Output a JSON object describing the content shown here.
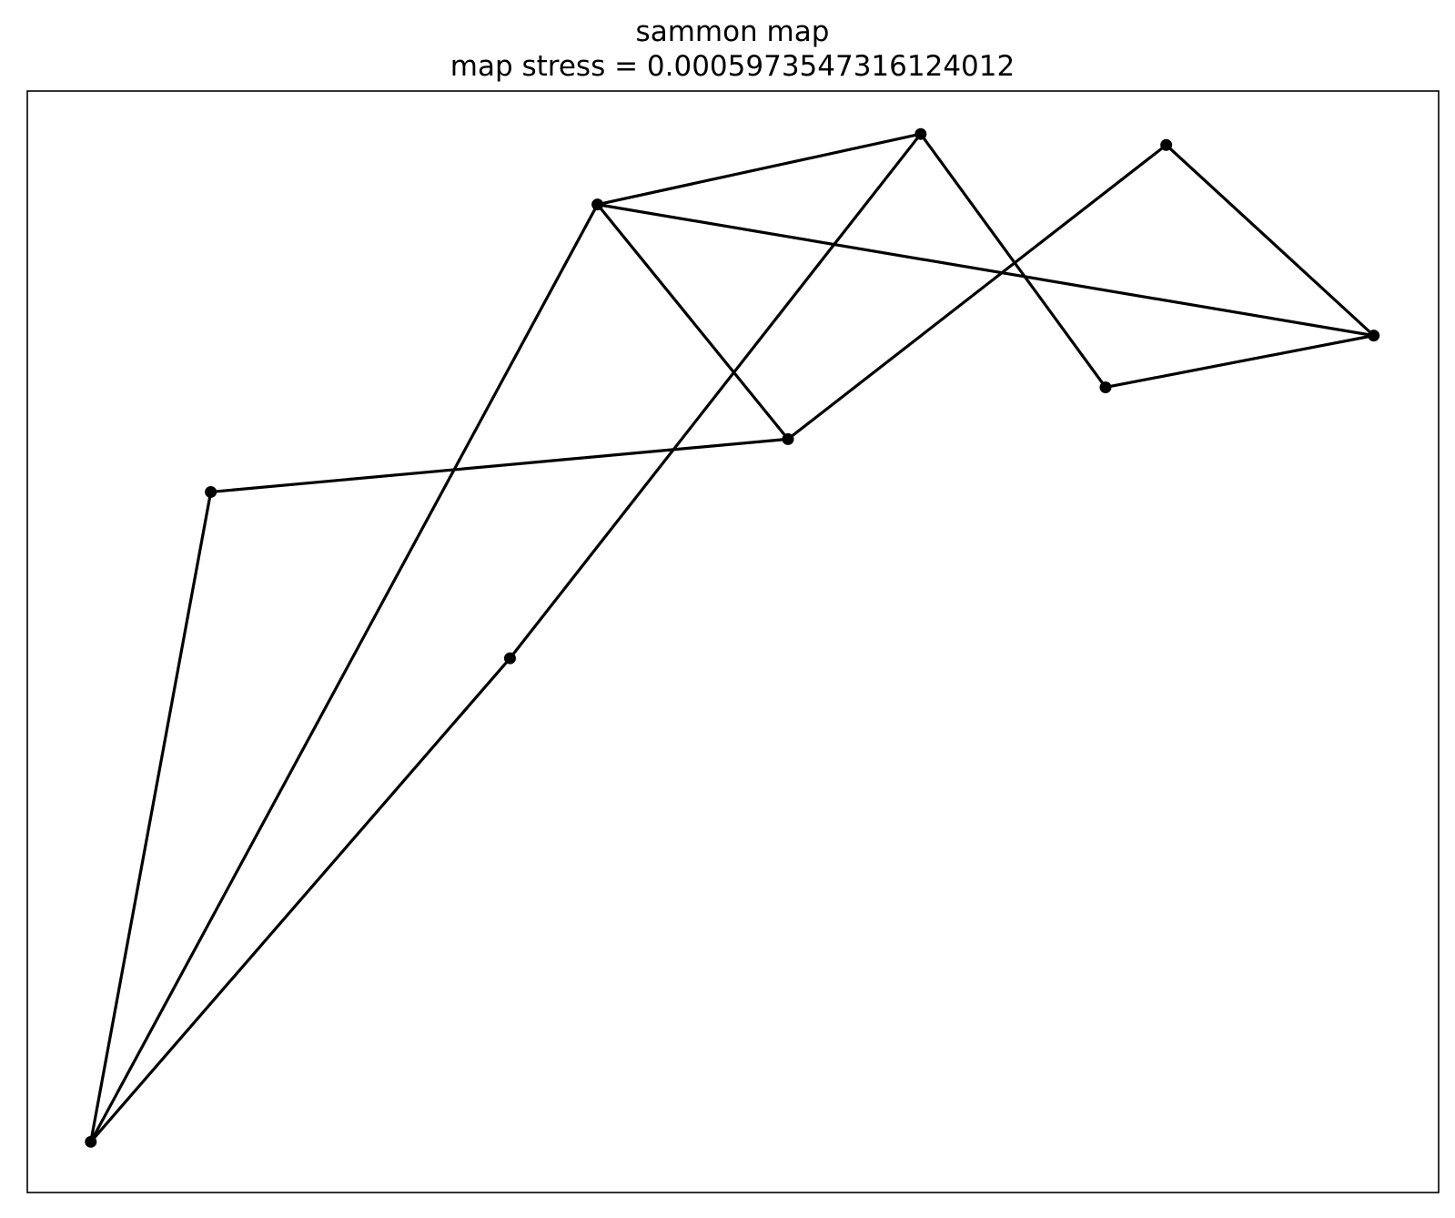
{
  "chart_data": {
    "type": "line",
    "title": "sammon map",
    "subtitle": "map stress = 0.0005973547316124012",
    "xlabel": "",
    "ylabel": "",
    "axis_ticks_visible": false,
    "grid": false,
    "xlim": [
      0,
      100
    ],
    "ylim": [
      0,
      100
    ],
    "line_color": "#000000",
    "marker_color": "#000000",
    "points": [
      {
        "id": 0,
        "x": 4.5,
        "y": 4.6
      },
      {
        "id": 1,
        "x": 13.0,
        "y": 63.6
      },
      {
        "id": 2,
        "x": 34.2,
        "y": 48.5
      },
      {
        "id": 3,
        "x": 40.4,
        "y": 89.7
      },
      {
        "id": 4,
        "x": 53.9,
        "y": 68.4
      },
      {
        "id": 5,
        "x": 63.3,
        "y": 96.1
      },
      {
        "id": 6,
        "x": 76.4,
        "y": 73.1
      },
      {
        "id": 7,
        "x": 80.7,
        "y": 95.1
      },
      {
        "id": 8,
        "x": 95.4,
        "y": 77.8
      }
    ],
    "edges": [
      [
        0,
        1
      ],
      [
        1,
        4
      ],
      [
        4,
        7
      ],
      [
        7,
        8
      ],
      [
        8,
        3
      ],
      [
        3,
        5
      ],
      [
        5,
        6
      ],
      [
        6,
        8
      ],
      [
        3,
        0
      ],
      [
        0,
        2
      ],
      [
        2,
        5
      ],
      [
        3,
        4
      ]
    ]
  }
}
